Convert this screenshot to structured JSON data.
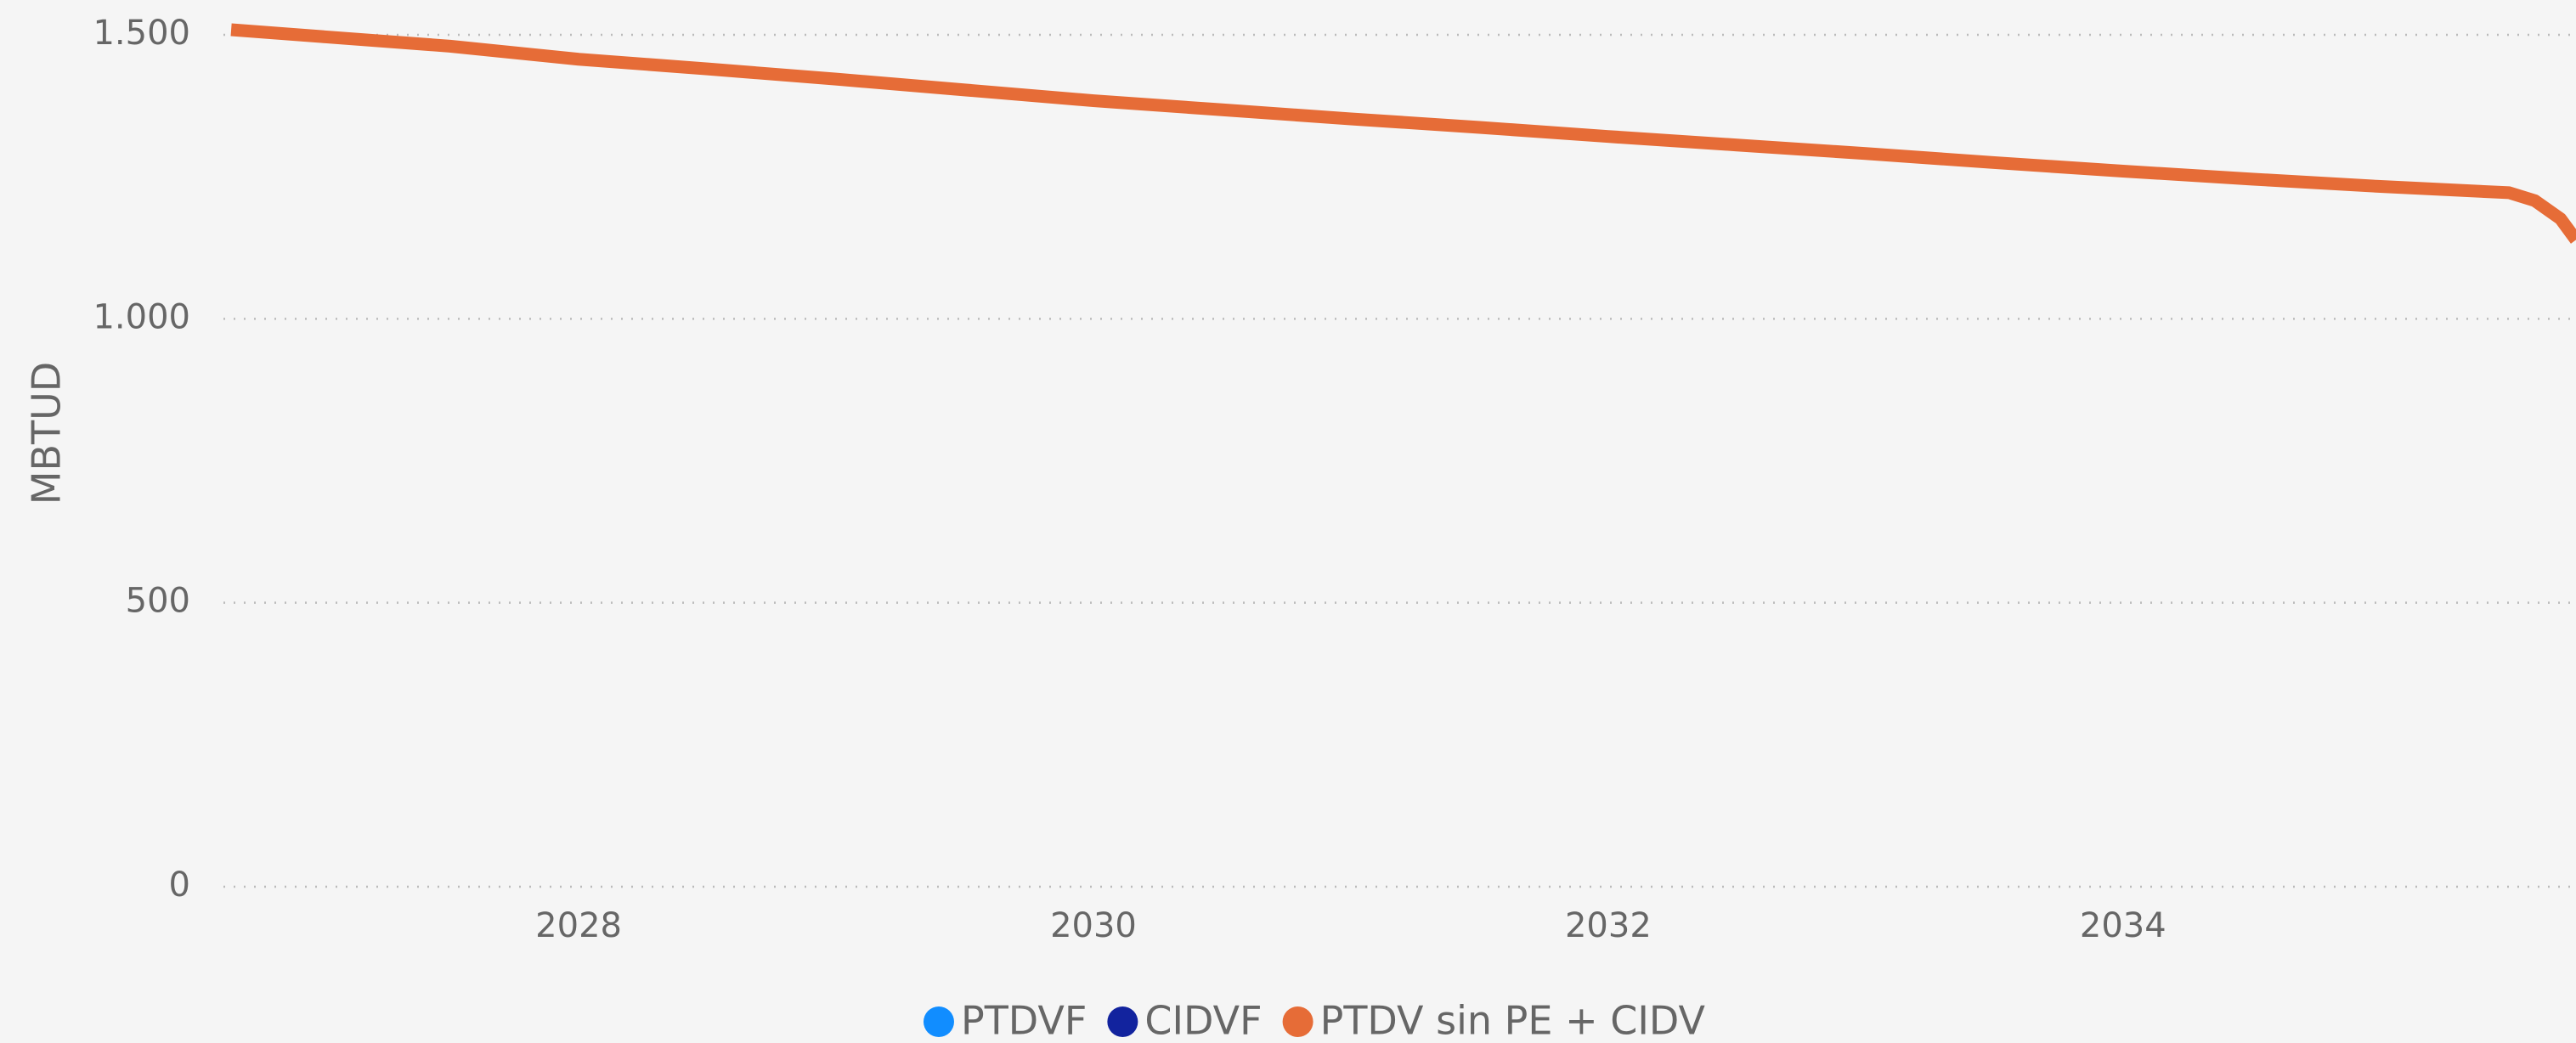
{
  "chart_data": {
    "type": "line",
    "y_label": "MBTUD",
    "x": [
      2026.65,
      2027,
      2027.5,
      2028,
      2028.5,
      2029,
      2029.5,
      2030,
      2030.5,
      2031,
      2031.5,
      2032,
      2032.5,
      2033,
      2033.5,
      2034,
      2034.5,
      2035,
      2035.5,
      2035.6,
      2035.7,
      2035.76
    ],
    "series": [
      {
        "name": "PTDVF",
        "color": "#118dff",
        "values": [
          null,
          null,
          null,
          null,
          null,
          null,
          null,
          null,
          null,
          null,
          null,
          null,
          null,
          null,
          null,
          null,
          null,
          null,
          null,
          null,
          null,
          null
        ]
      },
      {
        "name": "CIDVF",
        "color": "#12239e",
        "values": [
          null,
          null,
          null,
          null,
          null,
          null,
          null,
          null,
          null,
          null,
          null,
          null,
          null,
          null,
          null,
          null,
          null,
          null,
          null,
          null,
          null,
          null
        ]
      },
      {
        "name": "PTDV sin PE + CIDV",
        "color": "#e66c37",
        "values": [
          1509,
          1497,
          1480,
          1457,
          1440,
          1422,
          1403,
          1384,
          1368,
          1352,
          1337,
          1321,
          1306,
          1291,
          1275,
          1260,
          1246,
          1233,
          1222,
          1208,
          1176,
          1139
        ]
      }
    ],
    "xlim": [
      2026.62,
      2035.76
    ],
    "xticks": [
      2028,
      2030,
      2032,
      2034
    ],
    "ylim": [
      0,
      1500
    ],
    "yticks": [
      0,
      500,
      {
        "value": 1000,
        "label": "1.000"
      },
      {
        "value": 1500,
        "label": "1.500"
      }
    ],
    "grid": true,
    "legend": "bottom"
  }
}
